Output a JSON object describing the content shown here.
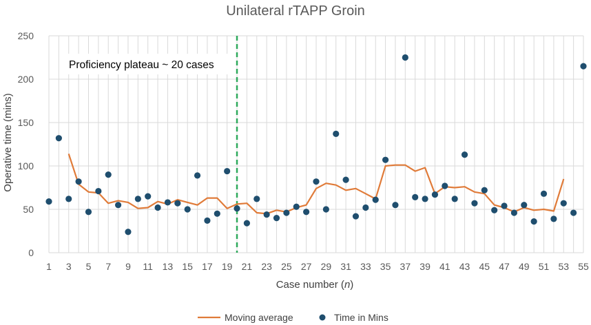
{
  "chart_data": {
    "type": "scatter",
    "title": "Unilateral rTAPP Groin",
    "xlabel": "Case number (n)",
    "xlabel_main": "Case number (",
    "xlabel_var": "n",
    "xlabel_end": ")",
    "ylabel": "Operative time (mins)",
    "ylim": [
      0,
      250
    ],
    "yticks": [
      0,
      50,
      100,
      150,
      200,
      250
    ],
    "xlim": [
      1,
      55
    ],
    "xticks": [
      1,
      3,
      5,
      7,
      9,
      11,
      13,
      15,
      17,
      19,
      21,
      23,
      25,
      27,
      29,
      31,
      33,
      35,
      37,
      39,
      41,
      43,
      45,
      47,
      49,
      51,
      53,
      55
    ],
    "grid": "vertical and horizontal",
    "legend_position": "bottom",
    "annotation": "Proficiency plateau ~ 20 cases",
    "plateau_case": 20,
    "colors": {
      "moving_average": "#e07b39",
      "points": "#1f4e6e",
      "plateau_line": "#2eaa5c",
      "grid": "#d9d9d9"
    },
    "series": [
      {
        "name": "Time in Mins",
        "kind": "scatter",
        "x": [
          1,
          2,
          3,
          4,
          5,
          6,
          7,
          8,
          9,
          10,
          11,
          12,
          13,
          14,
          15,
          16,
          17,
          18,
          19,
          20,
          21,
          22,
          23,
          24,
          25,
          26,
          27,
          28,
          29,
          30,
          31,
          32,
          33,
          34,
          35,
          36,
          37,
          38,
          39,
          40,
          41,
          42,
          43,
          44,
          45,
          46,
          47,
          48,
          49,
          50,
          51,
          52,
          53,
          54,
          55
        ],
        "values": [
          59,
          132,
          62,
          82,
          47,
          71,
          90,
          55,
          24,
          62,
          65,
          52,
          58,
          57,
          50,
          89,
          37,
          45,
          94,
          51,
          34,
          62,
          44,
          40,
          46,
          53,
          47,
          82,
          50,
          137,
          84,
          42,
          52,
          61,
          107,
          55,
          225,
          64,
          62,
          67,
          77,
          62,
          113,
          57,
          72,
          49,
          54,
          46,
          55,
          36,
          68,
          39,
          57,
          46,
          215
        ]
      },
      {
        "name": "Moving average",
        "kind": "line",
        "x": [
          3,
          4,
          5,
          6,
          7,
          8,
          9,
          10,
          11,
          12,
          13,
          14,
          15,
          16,
          17,
          18,
          19,
          20,
          21,
          22,
          23,
          24,
          25,
          26,
          27,
          28,
          29,
          30,
          31,
          32,
          33,
          34,
          35,
          36,
          37,
          38,
          39,
          40,
          41,
          42,
          43,
          44,
          45,
          46,
          47,
          48,
          49,
          50,
          51,
          52,
          53
        ],
        "values": [
          114,
          79,
          70,
          69,
          57,
          60,
          58,
          51,
          52,
          59,
          56,
          61,
          58,
          55,
          63,
          63,
          51,
          56,
          57,
          46,
          45,
          49,
          47,
          52,
          55,
          74,
          80,
          78,
          72,
          74,
          68,
          62,
          100,
          101,
          101,
          94,
          98,
          68,
          76,
          75,
          76,
          70,
          68,
          55,
          52,
          47,
          52,
          49,
          50,
          48,
          85
        ]
      }
    ]
  }
}
